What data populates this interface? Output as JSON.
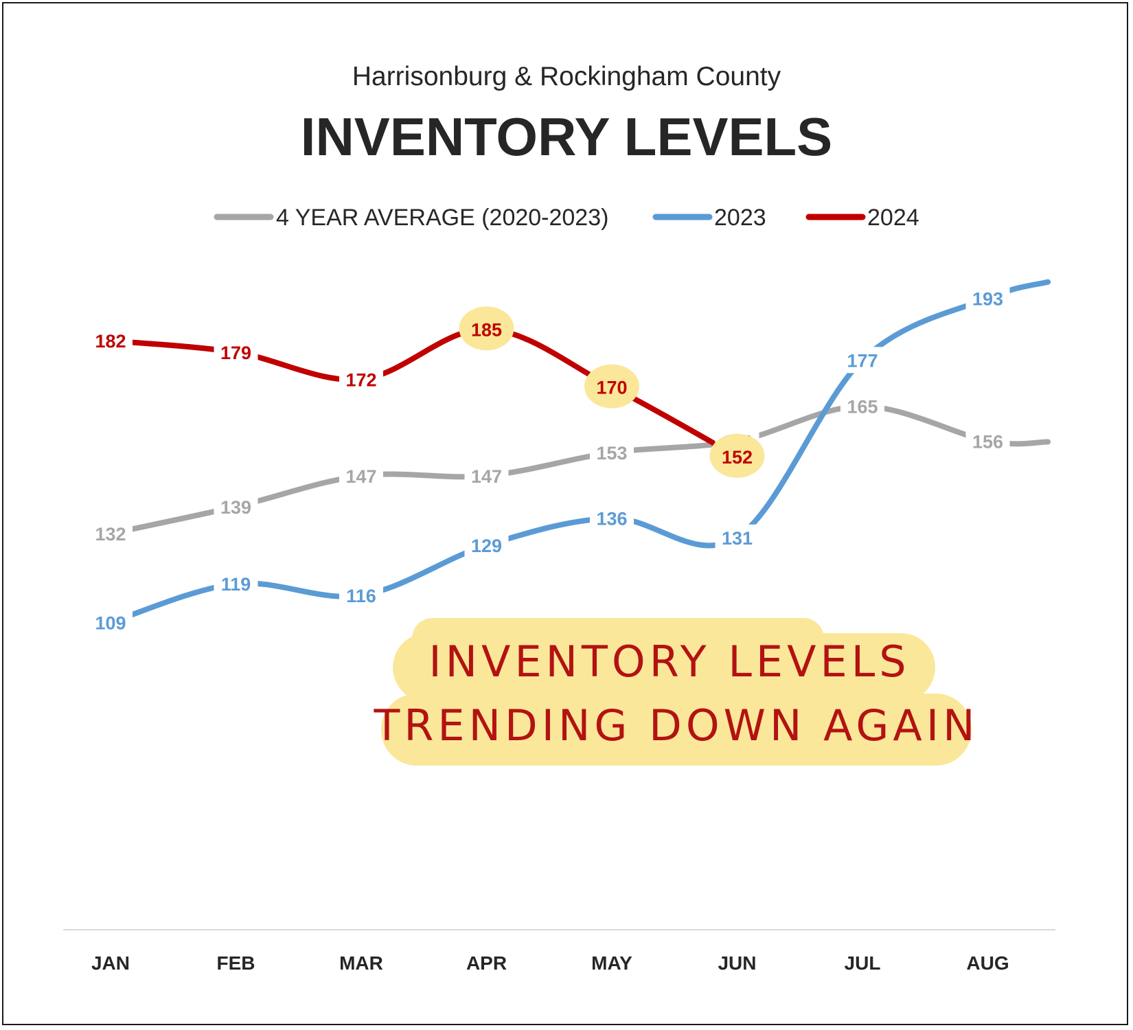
{
  "colors": {
    "avg": "#a6a6a6",
    "y2023": "#5b9bd5",
    "y2024": "#c00000",
    "highlight": "#fae79a",
    "text": "#262626",
    "axis": "#d9d9d9"
  },
  "chart_data": {
    "type": "line",
    "subtitle": "Harrisonburg & Rockingham County",
    "title": "INVENTORY LEVELS",
    "categories": [
      "JAN",
      "FEB",
      "MAR",
      "APR",
      "MAY",
      "JUN",
      "JUL",
      "AUG"
    ],
    "ylim": [
      0,
      220
    ],
    "grid": false,
    "legend_position": "top",
    "series": [
      {
        "name": "4 YEAR AVERAGE (2020-2023)",
        "color": "#a6a6a6",
        "values": [
          132,
          139,
          147,
          147,
          153,
          156,
          165,
          156
        ],
        "extends_past_last": true
      },
      {
        "name": "2023",
        "color": "#5b9bd5",
        "values": [
          109,
          119,
          116,
          129,
          136,
          131,
          177,
          193
        ],
        "extends_past_last": true
      },
      {
        "name": "2024",
        "color": "#c00000",
        "values": [
          182,
          179,
          172,
          185,
          170,
          152,
          null,
          null
        ],
        "highlighted_labels": [
          "APR",
          "MAY",
          "JUN"
        ]
      }
    ],
    "annotation": {
      "lines": [
        "INVENTORY LEVELS",
        "TRENDING DOWN AGAIN"
      ]
    }
  }
}
